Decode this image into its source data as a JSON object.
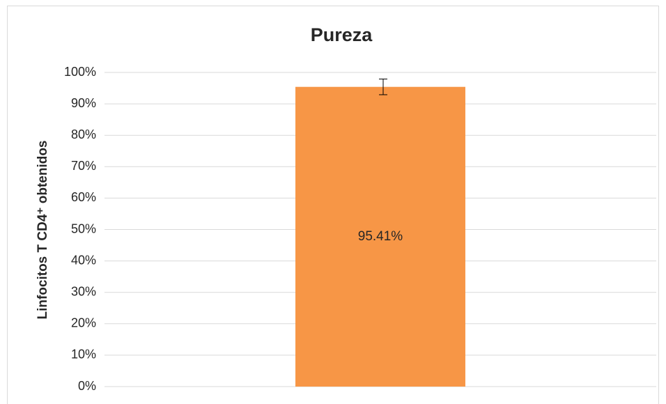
{
  "chart_data": {
    "type": "bar",
    "title": "Pureza",
    "y_label": "Linfocitos T CD4⁺ obtenidos",
    "categories": [
      null
    ],
    "values": [
      95.41
    ],
    "value_labels": [
      "95.41%"
    ],
    "errors": [
      2.5
    ],
    "color": "#f79646",
    "ylim": [
      0,
      100
    ],
    "yticks": [
      {
        "value": 0,
        "label": "0%"
      },
      {
        "value": 10,
        "label": "10%"
      },
      {
        "value": 20,
        "label": "20%"
      },
      {
        "value": 30,
        "label": "30%"
      },
      {
        "value": 40,
        "label": "40%"
      },
      {
        "value": 50,
        "label": "50%"
      },
      {
        "value": 60,
        "label": "60%"
      },
      {
        "value": 70,
        "label": "70%"
      },
      {
        "value": 80,
        "label": "80%"
      },
      {
        "value": 90,
        "label": "90%"
      },
      {
        "value": 100,
        "label": "100%"
      }
    ],
    "grid": true
  }
}
